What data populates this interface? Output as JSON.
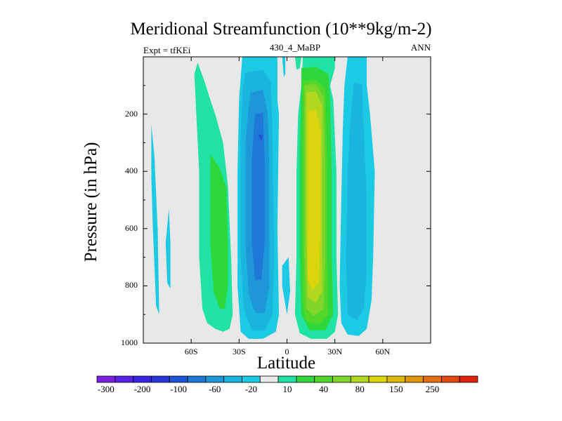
{
  "chart_data": {
    "type": "contour",
    "title": "Meridional Streamfunction (10**9kg/m-2)",
    "left_string": "Expt = tfKEi",
    "center_string": "430_4_MaBP",
    "right_string": "ANN",
    "xlabel": "Latitude",
    "ylabel": "Pressure (in hPa)",
    "xlim": [
      -90,
      90
    ],
    "ylim": [
      1000,
      0
    ],
    "xticks": [
      {
        "value": -60,
        "label": "60S"
      },
      {
        "value": -30,
        "label": "30S"
      },
      {
        "value": 0,
        "label": "0"
      },
      {
        "value": 30,
        "label": "30N"
      },
      {
        "value": 60,
        "label": "60N"
      }
    ],
    "yticks": [
      {
        "value": 200,
        "label": "200"
      },
      {
        "value": 400,
        "label": "400"
      },
      {
        "value": 600,
        "label": "600"
      },
      {
        "value": 800,
        "label": "800"
      },
      {
        "value": 1000,
        "label": "1000"
      }
    ],
    "background_color": "#e8e8e8",
    "colorbar": {
      "colors": [
        "#7a1fe0",
        "#5a22e6",
        "#3a22e2",
        "#2a33d6",
        "#1f55d8",
        "#1f78d8",
        "#1e97d8",
        "#1ab5df",
        "#1ccbe3",
        "#eaeaea",
        "#1fe2a4",
        "#2ed83a",
        "#52d62a",
        "#7fd62a",
        "#b1d81e",
        "#dcd50c",
        "#ddb50c",
        "#e0950c",
        "#e26d12",
        "#e24a12",
        "#e02012"
      ],
      "labels": [
        "-300",
        "-200",
        "-100",
        "-60",
        "-20",
        "10",
        "40",
        "80",
        "150",
        "250"
      ],
      "label_colors": [
        1,
        3,
        5,
        7,
        9,
        11,
        13,
        15,
        17,
        19
      ]
    },
    "regions": [
      {
        "name": "sh-polar-negative-1",
        "color": "#1ccbe3",
        "points": [
          [
            -85,
            235
          ],
          [
            -83,
            350
          ],
          [
            -81,
            600
          ],
          [
            -80,
            900
          ],
          [
            -82,
            870
          ],
          [
            -84,
            600
          ],
          [
            -85,
            420
          ]
        ]
      },
      {
        "name": "sh-polar-negative-2",
        "color": "#1ccbe3",
        "points": [
          [
            -74,
            530
          ],
          [
            -73,
            650
          ],
          [
            -73,
            810
          ],
          [
            -75,
            790
          ],
          [
            -76,
            650
          ]
        ]
      },
      {
        "name": "sh-midlat-positive",
        "color": "#1fe2a4",
        "points": [
          [
            -56,
            20
          ],
          [
            -52,
            80
          ],
          [
            -48,
            150
          ],
          [
            -45,
            200
          ],
          [
            -40,
            300
          ],
          [
            -37,
            450
          ],
          [
            -35,
            700
          ],
          [
            -34,
            900
          ],
          [
            -36,
            950
          ],
          [
            -40,
            960
          ],
          [
            -45,
            950
          ],
          [
            -50,
            930
          ],
          [
            -53,
            880
          ],
          [
            -55,
            700
          ],
          [
            -55,
            400
          ],
          [
            -57,
            180
          ],
          [
            -58,
            60
          ]
        ]
      },
      {
        "name": "sh-midlat-positive-core",
        "color": "#2ed83a",
        "points": [
          [
            -48,
            340
          ],
          [
            -42,
            390
          ],
          [
            -38,
            460
          ],
          [
            -37,
            650
          ],
          [
            -37,
            800
          ],
          [
            -39,
            880
          ],
          [
            -42,
            880
          ],
          [
            -46,
            820
          ],
          [
            -48,
            650
          ],
          [
            -48,
            450
          ]
        ]
      },
      {
        "name": "sh-cell-outer",
        "color": "#1ccbe3",
        "points": [
          [
            -28,
            0
          ],
          [
            -6,
            0
          ],
          [
            -6,
            150
          ],
          [
            -5,
            200
          ],
          [
            -6,
            600
          ],
          [
            -5,
            900
          ],
          [
            -7,
            960
          ],
          [
            -15,
            985
          ],
          [
            -24,
            985
          ],
          [
            -29,
            960
          ],
          [
            -31,
            800
          ],
          [
            -31,
            400
          ],
          [
            -30,
            150
          ]
        ]
      },
      {
        "name": "sh-cell-mid",
        "color": "#1ab5df",
        "points": [
          [
            -26,
            55
          ],
          [
            -15,
            45
          ],
          [
            -10,
            90
          ],
          [
            -9,
            300
          ],
          [
            -8,
            700
          ],
          [
            -9,
            900
          ],
          [
            -14,
            955
          ],
          [
            -22,
            955
          ],
          [
            -27,
            880
          ],
          [
            -29,
            700
          ],
          [
            -29,
            300
          ],
          [
            -28,
            120
          ]
        ]
      },
      {
        "name": "sh-cell-inner",
        "color": "#1e97d8",
        "points": [
          [
            -23,
            125
          ],
          [
            -15,
            115
          ],
          [
            -12,
            200
          ],
          [
            -11,
            400
          ],
          [
            -11,
            800
          ],
          [
            -14,
            895
          ],
          [
            -20,
            895
          ],
          [
            -24,
            830
          ],
          [
            -26,
            650
          ],
          [
            -26,
            300
          ]
        ]
      },
      {
        "name": "sh-cell-core",
        "color": "#1f78d8",
        "points": [
          [
            -20,
            200
          ],
          [
            -15,
            195
          ],
          [
            -14,
            350
          ],
          [
            -14,
            650
          ],
          [
            -16,
            780
          ],
          [
            -20,
            780
          ],
          [
            -22,
            650
          ],
          [
            -22,
            350
          ]
        ]
      },
      {
        "name": "sh-cell-max",
        "color": "#1f55d8",
        "points": [
          [
            -18,
            272
          ],
          [
            -15,
            272
          ],
          [
            -16,
            295
          ]
        ]
      },
      {
        "name": "nh-cell-outer",
        "color": "#1fe2a4",
        "points": [
          [
            10,
            0
          ],
          [
            30,
            0
          ],
          [
            30,
            40
          ],
          [
            27,
            100
          ],
          [
            29,
            150
          ],
          [
            31,
            400
          ],
          [
            31,
            700
          ],
          [
            32,
            900
          ],
          [
            30,
            960
          ],
          [
            25,
            985
          ],
          [
            15,
            985
          ],
          [
            8,
            965
          ],
          [
            5,
            900
          ],
          [
            6,
            700
          ],
          [
            6,
            400
          ],
          [
            7,
            200
          ],
          [
            9,
            100
          ]
        ]
      },
      {
        "name": "nh-cell-mid",
        "color": "#2ed83a",
        "points": [
          [
            9,
            40
          ],
          [
            18,
            35
          ],
          [
            26,
            60
          ],
          [
            27,
            150
          ],
          [
            28,
            400
          ],
          [
            28,
            700
          ],
          [
            29,
            900
          ],
          [
            24,
            955
          ],
          [
            14,
            955
          ],
          [
            9,
            900
          ],
          [
            8,
            700
          ],
          [
            8,
            300
          ],
          [
            9,
            120
          ]
        ]
      },
      {
        "name": "nh-cell-inner",
        "color": "#52d62a",
        "points": [
          [
            10,
            85
          ],
          [
            18,
            80
          ],
          [
            24,
            110
          ],
          [
            25,
            300
          ],
          [
            25,
            700
          ],
          [
            26,
            900
          ],
          [
            20,
            935
          ],
          [
            12,
            925
          ],
          [
            10,
            860
          ],
          [
            10,
            500
          ],
          [
            10,
            200
          ]
        ]
      },
      {
        "name": "nh-cell-inner2",
        "color": "#7fd62a",
        "points": [
          [
            11,
            100
          ],
          [
            18,
            95
          ],
          [
            23,
            140
          ],
          [
            24,
            400
          ],
          [
            24,
            700
          ],
          [
            23,
            880
          ],
          [
            17,
            905
          ],
          [
            12,
            880
          ],
          [
            11,
            700
          ],
          [
            11,
            300
          ]
        ]
      },
      {
        "name": "nh-cell-core",
        "color": "#b1d81e",
        "points": [
          [
            12,
            125
          ],
          [
            18,
            120
          ],
          [
            22,
            170
          ],
          [
            22,
            500
          ],
          [
            22,
            820
          ],
          [
            18,
            860
          ],
          [
            13,
            840
          ],
          [
            12,
            600
          ],
          [
            12,
            250
          ]
        ]
      },
      {
        "name": "nh-cell-max",
        "color": "#dcd50c",
        "points": [
          [
            13,
            190
          ],
          [
            18,
            185
          ],
          [
            21,
            250
          ],
          [
            21,
            600
          ],
          [
            20,
            790
          ],
          [
            16,
            815
          ],
          [
            13,
            780
          ],
          [
            13,
            500
          ],
          [
            13,
            280
          ]
        ]
      },
      {
        "name": "equator-negative",
        "color": "#1ccbe3",
        "points": [
          [
            -3,
            730
          ],
          [
            1,
            700
          ],
          [
            2,
            820
          ],
          [
            0,
            900
          ],
          [
            -3,
            800
          ]
        ]
      },
      {
        "name": "equator-top-negative",
        "color": "#1ccbe3",
        "points": [
          [
            -3,
            0
          ],
          [
            -1,
            0
          ],
          [
            -1,
            60
          ],
          [
            -2,
            70
          ]
        ]
      },
      {
        "name": "equator-top-positive",
        "color": "#1fe2a4",
        "points": [
          [
            5,
            0
          ],
          [
            9,
            0
          ],
          [
            8,
            40
          ],
          [
            6,
            45
          ]
        ]
      },
      {
        "name": "nh-midlat-negative",
        "color": "#1ccbe3",
        "points": [
          [
            38,
            0
          ],
          [
            50,
            0
          ],
          [
            50,
            100
          ],
          [
            52,
            200
          ],
          [
            55,
            400
          ],
          [
            54,
            700
          ],
          [
            53,
            850
          ],
          [
            50,
            950
          ],
          [
            45,
            975
          ],
          [
            38,
            970
          ],
          [
            34,
            930
          ],
          [
            33,
            800
          ],
          [
            34,
            500
          ],
          [
            35,
            250
          ],
          [
            36,
            100
          ]
        ]
      },
      {
        "name": "nh-midlat-negative-core",
        "color": "#1ab5df",
        "points": [
          [
            42,
            90
          ],
          [
            47,
            95
          ],
          [
            48,
            250
          ],
          [
            50,
            500
          ],
          [
            50,
            750
          ],
          [
            48,
            880
          ],
          [
            44,
            920
          ],
          [
            38,
            900
          ],
          [
            37,
            700
          ],
          [
            38,
            400
          ],
          [
            40,
            200
          ]
        ]
      }
    ]
  }
}
